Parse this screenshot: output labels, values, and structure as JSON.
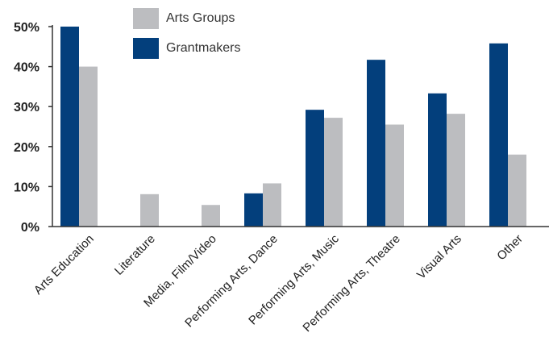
{
  "chart_data": {
    "type": "bar",
    "categories": [
      "Arts Education",
      "Literature",
      "Media, Film/Video",
      "Performing Arts, Dance",
      "Performing Arts, Music",
      "Performing Arts, Theatre",
      "Visual Arts",
      "Other"
    ],
    "series": [
      {
        "name": "Grantmakers",
        "color": "#033f7c",
        "values": [
          50,
          0,
          0,
          8.3,
          29.2,
          41.7,
          33.3,
          45.8
        ]
      },
      {
        "name": "Arts Groups",
        "color": "#bcbdc0",
        "values": [
          40,
          8.1,
          5.4,
          10.8,
          27.2,
          25.5,
          28.2,
          18
        ]
      }
    ],
    "yticks": [
      "0%",
      "10%",
      "20%",
      "30%",
      "40%",
      "50%"
    ],
    "ylim": [
      0,
      50
    ],
    "legend_order": [
      "Arts Groups",
      "Grantmakers"
    ],
    "legend_position": "top"
  }
}
